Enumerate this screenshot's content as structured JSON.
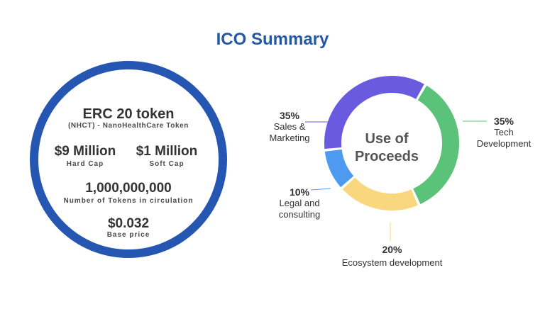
{
  "page": {
    "title": "ICO Summary"
  },
  "summary": {
    "token_title": "ERC 20 token",
    "token_subtitle": "(NHCT) - NanoHealthCare Token",
    "hard_cap_value": "$9 Million",
    "hard_cap_label": "Hard Cap",
    "soft_cap_value": "$1 Million",
    "soft_cap_label": "Soft Cap",
    "tokens_value": "1,000,000,000",
    "tokens_label": "Number of Tokens in circulation",
    "base_price_value": "$0.032",
    "base_price_label": "Base price"
  },
  "chart_data": {
    "type": "pie",
    "title": "Use of Proceeds",
    "center_line1": "Use of",
    "center_line2": "Proceeds",
    "slices": [
      {
        "name": "Tech",
        "name2": "Development",
        "value": 35,
        "label": "35%",
        "color": "#5bc27a"
      },
      {
        "name": "Ecosystem development",
        "name2": "",
        "value": 20,
        "label": "20%",
        "color": "#f9d77e"
      },
      {
        "name": "Legal and",
        "name2": "consulting",
        "value": 10,
        "label": "10%",
        "color": "#4e9af1"
      },
      {
        "name": "Sales &",
        "name2": "Marketing",
        "value": 35,
        "label": "35%",
        "color": "#6a5ae0"
      }
    ]
  }
}
